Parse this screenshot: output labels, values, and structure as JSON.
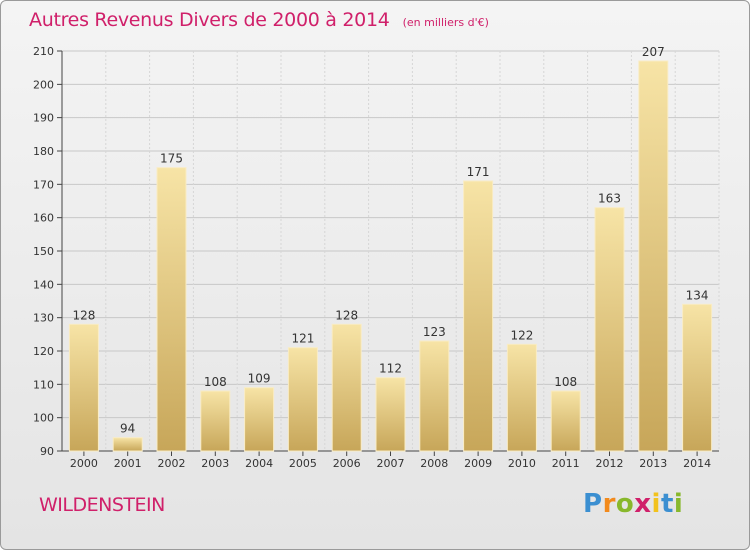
{
  "header": {
    "title": "Autres Revenus Divers de 2000 à 2014",
    "subtitle": "(en milliers d'€)"
  },
  "footer": {
    "commune": "WILDENSTEIN",
    "logo": "Proxiti"
  },
  "colors": {
    "title": "#d0206a",
    "bar_light": "#f5dc9a",
    "bar_dark": "#c9a85a",
    "grid": "#c8c8c8"
  },
  "chart_data": {
    "type": "bar",
    "title": "Autres Revenus Divers de 2000 à 2014",
    "subtitle": "(en milliers d'€)",
    "categories": [
      "2000",
      "2001",
      "2002",
      "2003",
      "2004",
      "2005",
      "2006",
      "2007",
      "2008",
      "2009",
      "2010",
      "2011",
      "2012",
      "2013",
      "2014"
    ],
    "values": [
      128,
      94,
      175,
      108,
      109,
      121,
      128,
      112,
      123,
      171,
      122,
      108,
      163,
      207,
      134
    ],
    "ylim": [
      90,
      210
    ],
    "yticks": [
      90,
      100,
      110,
      120,
      130,
      140,
      150,
      160,
      170,
      180,
      190,
      200,
      210
    ],
    "grid": true,
    "data_labels": true
  }
}
